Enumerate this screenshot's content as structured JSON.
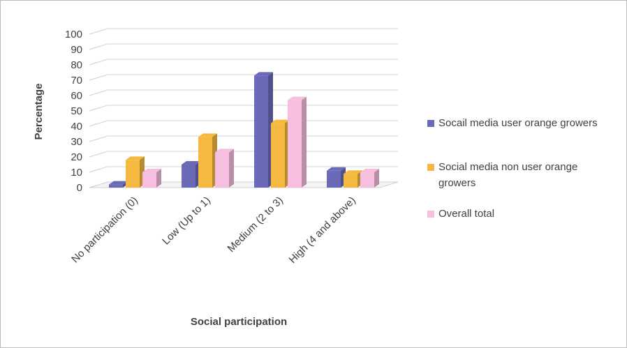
{
  "chart_data": {
    "type": "bar3d",
    "xlabel": "Social participation",
    "ylabel": "Percentage",
    "categories": [
      "No participation (0)",
      "Low (Up to 1)",
      "Medium (2 to 3)",
      "High (4 and above)"
    ],
    "series": [
      {
        "name": "Socail media user orange growers",
        "color": "#6a6ab8",
        "values": [
          2,
          15,
          73,
          11
        ]
      },
      {
        "name": "Social media non user orange growers",
        "color": "#f5b942",
        "values": [
          18,
          33,
          42,
          9
        ]
      },
      {
        "name": "Overall total",
        "color": "#f6bfe0",
        "values": [
          10,
          23,
          57,
          10
        ]
      }
    ],
    "ylim": [
      0,
      100
    ],
    "yticks": [
      0,
      10,
      20,
      30,
      40,
      50,
      60,
      70,
      80,
      90,
      100
    ],
    "grid": true
  }
}
